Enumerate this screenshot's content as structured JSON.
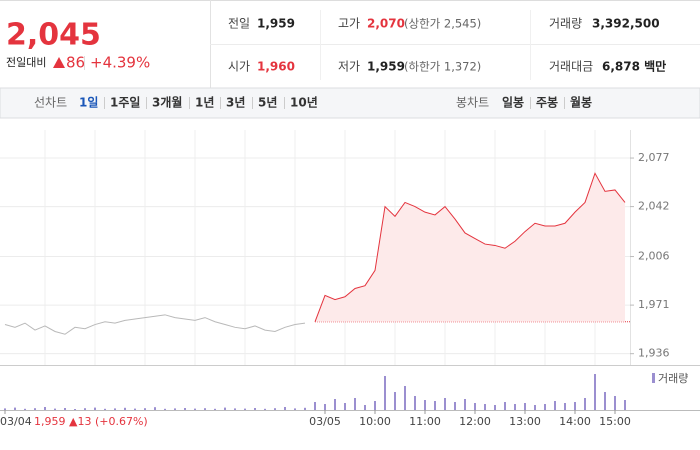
{
  "header": {
    "price": "2,045",
    "change_label": "전일대비",
    "change": "86",
    "change_pct": "+4.39%"
  },
  "quote": {
    "rows": [
      [
        {
          "label": "전일",
          "value": "1,959"
        },
        {
          "label": "고가",
          "value": "2,070",
          "note": "(상한가 2,545)"
        },
        {
          "label": "거래량",
          "value": "3,392,500"
        }
      ],
      [
        {
          "label": "시가",
          "value": "1,960"
        },
        {
          "label": "저가",
          "value": "1,959",
          "note": "(하한가 1,372)"
        },
        {
          "label": "거래대금",
          "value": "6,878 백만"
        }
      ]
    ]
  },
  "tabs": {
    "line_label": "선차트",
    "line_periods": [
      "1일",
      "1주일",
      "3개월",
      "1년",
      "3년",
      "5년",
      "10년"
    ],
    "candle_label": "봉차트",
    "candle_periods": [
      "일봉",
      "주봉",
      "월봉"
    ]
  },
  "chart_data": {
    "type": "line",
    "categories": [
      "03/04",
      null,
      null,
      null,
      null,
      null,
      null,
      null,
      null,
      null,
      null,
      null,
      null,
      null,
      null,
      null,
      null,
      null,
      null,
      null,
      null,
      null,
      null,
      null,
      null,
      null,
      null,
      null,
      null,
      null,
      null,
      null,
      "03/05",
      null,
      null,
      null,
      null,
      "10:00",
      null,
      null,
      null,
      null,
      "11:00",
      null,
      null,
      null,
      null,
      "12:00",
      null,
      null,
      null,
      null,
      "13:00",
      null,
      null,
      null,
      null,
      "14:00",
      null,
      null,
      null,
      "15:00",
      null
    ],
    "annotation": "1,959 ▲13 (+0.67%)",
    "reference": 1959,
    "ylim": [
      1930,
      2090
    ],
    "yticks": [
      {
        "value": 2077,
        "label": "2,077"
      },
      {
        "value": 2042,
        "label": "2,042"
      },
      {
        "value": 2006,
        "label": "2,006"
      },
      {
        "value": 1971,
        "label": "1,971"
      },
      {
        "value": 1936,
        "label": "1,936"
      }
    ],
    "y2lim": [
      0,
      200000
    ],
    "grid": true,
    "series": [
      {
        "color": "#b9b9b9",
        "values": [
          1957,
          1955,
          1958,
          1953,
          1956,
          1952,
          1950,
          1955,
          1954,
          1957,
          1959,
          1958,
          1960,
          1961,
          1962,
          1963,
          1964,
          1962,
          1961,
          1960,
          1962,
          1959,
          1957,
          1955,
          1954,
          1956,
          1953,
          1952,
          1955,
          1957,
          1958,
          null,
          null,
          null,
          null,
          null,
          null,
          null,
          null,
          null,
          null,
          null,
          null,
          null,
          null,
          null,
          null,
          null,
          null,
          null,
          null,
          null,
          null,
          null,
          null,
          null,
          null,
          null,
          null,
          null,
          null,
          null,
          null
        ]
      },
      {
        "color": "#e4343e",
        "fill": "#fdeaea",
        "values": [
          null,
          null,
          null,
          null,
          null,
          null,
          null,
          null,
          null,
          null,
          null,
          null,
          null,
          null,
          null,
          null,
          null,
          null,
          null,
          null,
          null,
          null,
          null,
          null,
          null,
          null,
          null,
          null,
          null,
          null,
          null,
          1959,
          1978,
          1975,
          1977,
          1983,
          1985,
          1996,
          2042,
          2035,
          2045,
          2042,
          2038,
          2036,
          2042,
          2033,
          2023,
          2019,
          2015,
          2014,
          2012,
          2017,
          2024,
          2030,
          2028,
          2028,
          2030,
          2038,
          2045,
          2066,
          2053,
          2054,
          2045
        ]
      },
      {
        "name": "거래량",
        "type": "bar",
        "axis": "y2",
        "color": "#9b8fd0",
        "values": [
          8000,
          12000,
          6000,
          9000,
          15000,
          7000,
          10000,
          5000,
          9000,
          12000,
          6000,
          8000,
          11000,
          7000,
          9000,
          14000,
          6000,
          8000,
          10000,
          7000,
          9000,
          6000,
          12000,
          8000,
          7000,
          10000,
          6000,
          9000,
          15000,
          8000,
          11000,
          40000,
          30000,
          55000,
          35000,
          60000,
          25000,
          45000,
          170000,
          90000,
          120000,
          70000,
          50000,
          45000,
          60000,
          40000,
          55000,
          35000,
          30000,
          25000,
          40000,
          30000,
          35000,
          25000,
          30000,
          45000,
          35000,
          40000,
          60000,
          180000,
          90000,
          70000,
          50000
        ]
      }
    ]
  }
}
